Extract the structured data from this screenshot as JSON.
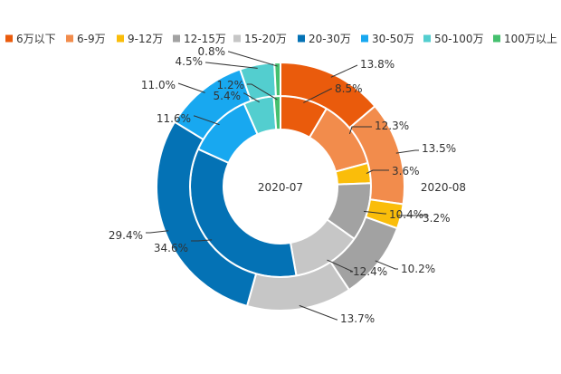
{
  "chart_data": {
    "type": "donut",
    "categories": [
      "6万以下",
      "6-9万",
      "9-12万",
      "12-15万",
      "15-20万",
      "20-30万",
      "30-50万",
      "50-100万",
      "100万以上"
    ],
    "colors": [
      "#EA5B0C",
      "#F28C4C",
      "#FABD0A",
      "#A2A2A2",
      "#C6C6C6",
      "#0472B5",
      "#18A8F0",
      "#53CECF",
      "#45C06E"
    ],
    "series": [
      {
        "name": "2020-07",
        "ring": "inner",
        "values": [
          8.5,
          12.3,
          3.6,
          10.4,
          12.4,
          34.6,
          11.6,
          5.4,
          1.2
        ],
        "labels": [
          "8.5%",
          "12.3%",
          "3.6%",
          "10.4%",
          "12.4%",
          "34.6%",
          "11.6%",
          "5.4%",
          "1.2%"
        ]
      },
      {
        "name": "2020-08",
        "ring": "outer",
        "values": [
          13.8,
          13.5,
          3.2,
          10.2,
          13.7,
          29.4,
          11.0,
          4.5,
          0.8
        ],
        "labels": [
          "13.8%",
          "13.5%",
          "3.2%",
          "10.2%",
          "13.7%",
          "29.4%",
          "11.0%",
          "4.5%",
          "0.8%"
        ]
      }
    ],
    "legend_position": "top",
    "unit": "%"
  }
}
